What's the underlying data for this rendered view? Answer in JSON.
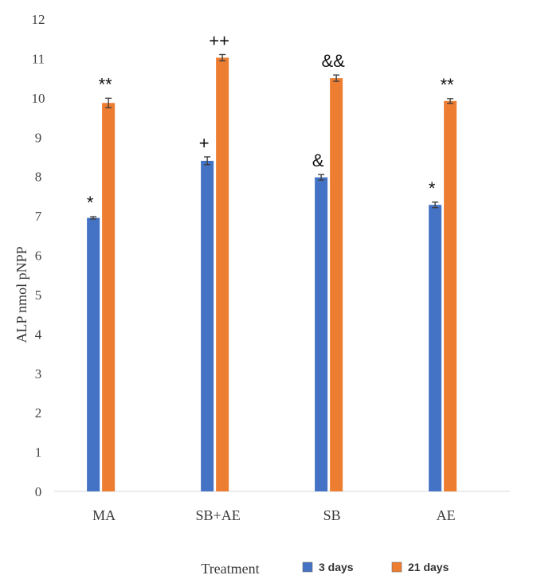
{
  "chart_data": {
    "type": "bar",
    "title": "",
    "xlabel": "Treatment",
    "ylabel": "ALP nmol   pNPP",
    "ylim": [
      0,
      12
    ],
    "yticks": [
      "0",
      "1",
      "2",
      "3",
      "4",
      "5",
      "6",
      "7",
      "8",
      "9",
      "10",
      "11",
      "12"
    ],
    "categories": [
      "MA",
      "SB+AE",
      "SB",
      "AE"
    ],
    "series": [
      {
        "name": "3 days",
        "color": "#4472c4",
        "values": [
          6.95,
          8.4,
          7.98,
          7.28
        ],
        "errors": [
          0.03,
          0.1,
          0.07,
          0.07
        ],
        "annotations": [
          "*",
          "+",
          "&",
          "*"
        ]
      },
      {
        "name": "21 days",
        "color": "#ed7d31",
        "values": [
          9.87,
          11.02,
          10.5,
          9.92
        ],
        "errors": [
          0.12,
          0.08,
          0.08,
          0.06
        ],
        "annotations": [
          "**",
          "++",
          "&&",
          "**"
        ]
      }
    ],
    "grid": false,
    "legend_position": "bottom-right"
  }
}
